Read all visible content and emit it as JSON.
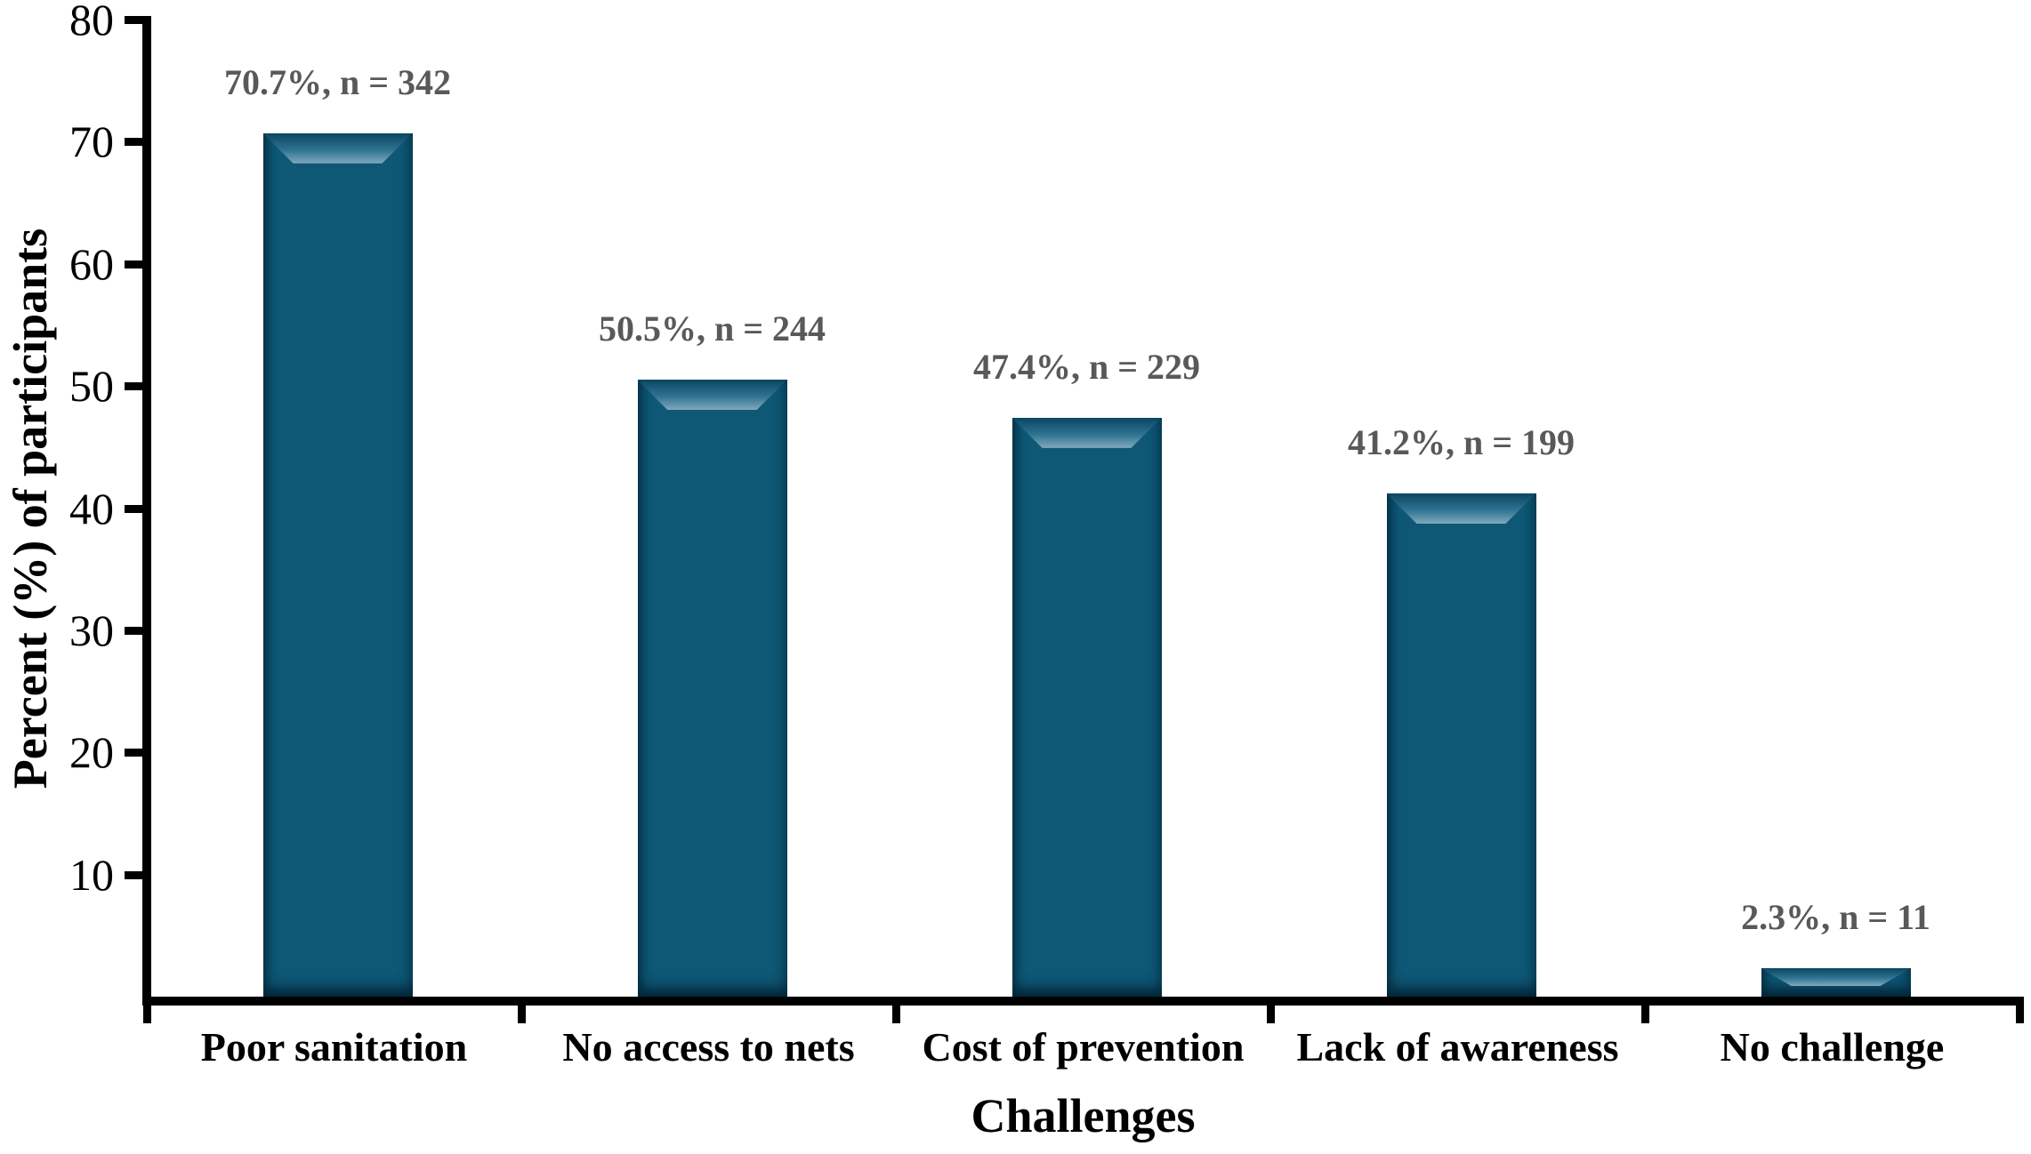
{
  "chart_data": {
    "type": "bar",
    "title": "",
    "xlabel": "Challenges",
    "ylabel": "Percent (%) of participants",
    "categories": [
      "Poor sanitation",
      "No access to nets",
      "Cost of prevention",
      "Lack of awareness",
      "No challenge"
    ],
    "values": [
      70.7,
      50.5,
      47.4,
      41.2,
      2.3
    ],
    "counts": [
      342,
      244,
      229,
      199,
      11
    ],
    "bar_labels": [
      "70.7%, n = 342",
      "50.5%, n = 244",
      "47.4%, n = 229",
      "41.2%, n = 199",
      "2.3%, n = 11"
    ],
    "ylim": [
      0,
      80
    ],
    "yticks": [
      10,
      20,
      30,
      40,
      50,
      60,
      70,
      80
    ],
    "grid": false,
    "legend": "none",
    "bar_color": "#0e5876",
    "bar_bevel_light": "#7fa9bc",
    "bar_bevel_dark": "#0a4660",
    "data_label_color": "#595959",
    "axis_color": "#000000",
    "background": "#ffffff"
  }
}
